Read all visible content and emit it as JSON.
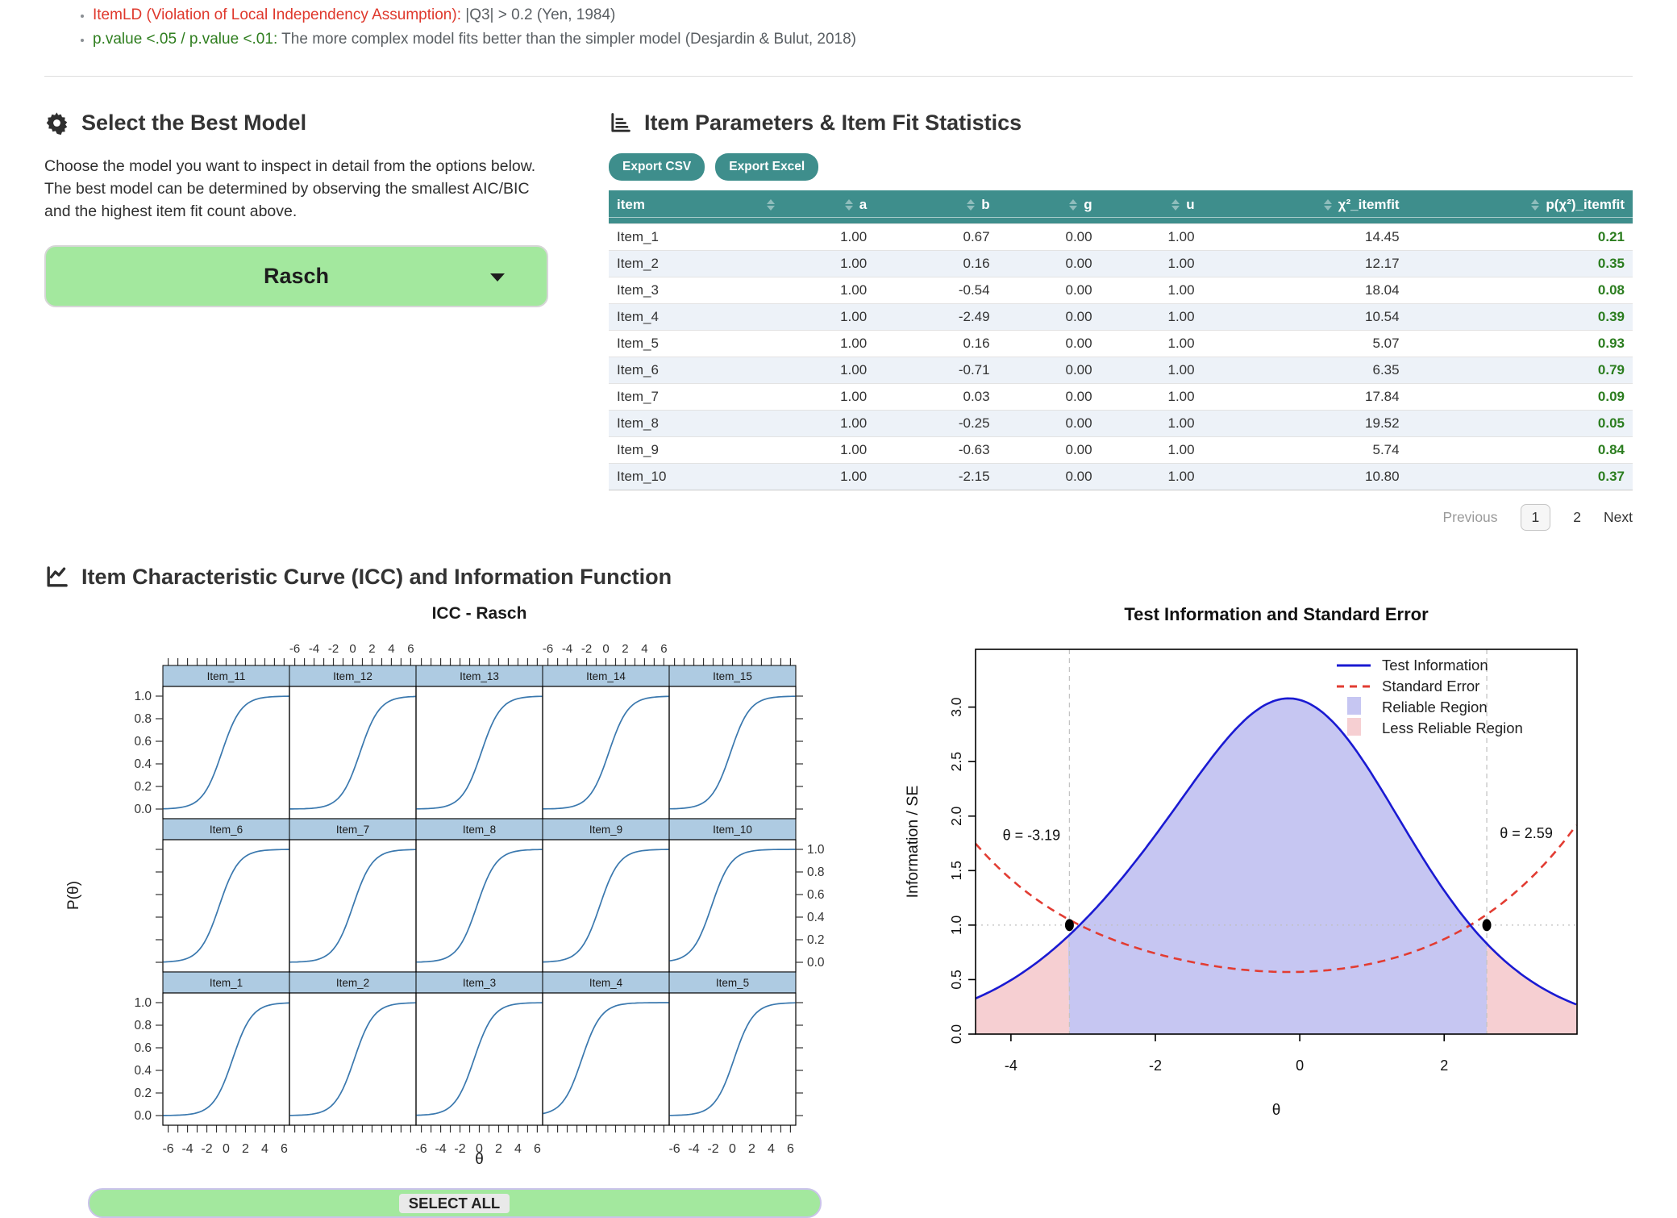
{
  "colors": {
    "teal": "#3e8e8c",
    "green_button": "#a3e89e",
    "lavender_border": "#cac3ea",
    "pvalue_green": "#2b7d1f",
    "note_red": "#df382c",
    "note_green": "#2f7e1f",
    "row_stripe": "#edf2f8"
  },
  "notes": {
    "bullet1_highlight": "ItemLD (Violation of Local Independency Assumption):",
    "bullet1_rest": " |Q3| > 0.2 (Yen, 1984)",
    "bullet2_highlight": "p.value <.05 / p.value <.01:",
    "bullet2_rest": " The more complex model fits better than the simpler model (Desjardin & Bulut, 2018)"
  },
  "model_select": {
    "title": "Select the Best Model",
    "description": "Choose the model you want to inspect in detail from the options below. The best model can be determined by observing the smallest AIC/BIC and the highest item fit count above.",
    "selected_model": "Rasch"
  },
  "item_table": {
    "title": "Item Parameters & Item Fit Statistics",
    "export_csv_label": "Export CSV",
    "export_excel_label": "Export Excel",
    "columns": [
      "item",
      "a",
      "b",
      "g",
      "u",
      "χ²_itemfit",
      "p(χ²)_itemfit"
    ],
    "col_widths_pct": [
      17,
      9,
      12,
      10,
      10,
      20,
      22
    ],
    "rows": [
      [
        "Item_1",
        "1.00",
        "0.67",
        "0.00",
        "1.00",
        "14.45",
        "0.21"
      ],
      [
        "Item_2",
        "1.00",
        "0.16",
        "0.00",
        "1.00",
        "12.17",
        "0.35"
      ],
      [
        "Item_3",
        "1.00",
        "-0.54",
        "0.00",
        "1.00",
        "18.04",
        "0.08"
      ],
      [
        "Item_4",
        "1.00",
        "-2.49",
        "0.00",
        "1.00",
        "10.54",
        "0.39"
      ],
      [
        "Item_5",
        "1.00",
        "0.16",
        "0.00",
        "1.00",
        "5.07",
        "0.93"
      ],
      [
        "Item_6",
        "1.00",
        "-0.71",
        "0.00",
        "1.00",
        "6.35",
        "0.79"
      ],
      [
        "Item_7",
        "1.00",
        "0.03",
        "0.00",
        "1.00",
        "17.84",
        "0.09"
      ],
      [
        "Item_8",
        "1.00",
        "-0.25",
        "0.00",
        "1.00",
        "19.52",
        "0.05"
      ],
      [
        "Item_9",
        "1.00",
        "-0.63",
        "0.00",
        "1.00",
        "5.74",
        "0.84"
      ],
      [
        "Item_10",
        "1.00",
        "-2.15",
        "0.00",
        "1.00",
        "10.80",
        "0.37"
      ]
    ],
    "pagination": {
      "previous": "Previous",
      "pages": [
        "1",
        "2"
      ],
      "current": "1",
      "next": "Next"
    }
  },
  "icc_section": {
    "title": "Item Characteristic Curve (ICC) and Information Function"
  },
  "select_all_label": "SELECT ALL",
  "chart_data": [
    {
      "type": "line",
      "title": "ICC - Rasch",
      "xlabel": "θ",
      "ylabel": "P(θ)",
      "xlim": [
        -6.55,
        6.55
      ],
      "ylim": [
        0,
        1
      ],
      "x_tick_labels": [
        -6,
        -4,
        -2,
        0,
        2,
        4,
        6
      ],
      "x_minor_step": 1,
      "y_ticks": [
        0.0,
        0.2,
        0.4,
        0.6,
        0.8,
        1.0
      ],
      "panel_rows": [
        [
          "Item_11",
          "Item_12",
          "Item_13",
          "Item_14",
          "Item_15"
        ],
        [
          "Item_6",
          "Item_7",
          "Item_8",
          "Item_9",
          "Item_10"
        ],
        [
          "Item_1",
          "Item_2",
          "Item_3",
          "Item_4",
          "Item_5"
        ]
      ],
      "curve_model": "P(θ) = 1 / (1 + exp(-(θ - b)))",
      "b": {
        "Item_1": 0.67,
        "Item_2": 0.16,
        "Item_3": -0.54,
        "Item_4": -2.49,
        "Item_5": 0.16,
        "Item_6": -0.71,
        "Item_7": 0.03,
        "Item_8": -0.25,
        "Item_9": -0.63,
        "Item_10": -2.15,
        "Item_11": -0.45,
        "Item_12": 0.75,
        "Item_13": 0.2,
        "Item_14": 0.3,
        "Item_15": -0.2
      },
      "colors": {
        "curve": "#3a78ae",
        "strip": "#aecbe2"
      }
    },
    {
      "type": "area+line",
      "title": "Test Information and Standard Error",
      "xlabel": "θ",
      "ylabel": "Information / SE",
      "xlim": [
        -4.49,
        3.84
      ],
      "ylim": [
        0,
        3.53
      ],
      "x_ticks": [
        -4,
        -2,
        0,
        2
      ],
      "y_ticks": [
        0.0,
        0.5,
        1.0,
        1.5,
        2.0,
        2.5,
        3.0
      ],
      "series": [
        {
          "name": "Test Information",
          "color": "#1a1ad2",
          "style": "solid",
          "peak": {
            "x": -0.15,
            "y": 3.08
          },
          "relation": "TI(θ) = Σ P(θ)(1-P(θ)) over the 15 Rasch items"
        },
        {
          "name": "Standard Error",
          "color": "#e23c32",
          "style": "dashed",
          "min": {
            "x": -0.15,
            "y": 0.57
          },
          "relation": "SE = 1/sqrt(TI)"
        }
      ],
      "cutoffs": {
        "theta_low": -3.19,
        "theta_high": 2.59,
        "intersection_y": 1.0
      },
      "annotations": [
        "θ = -3.19",
        "θ = 2.59"
      ],
      "legend": [
        "Test Information",
        "Standard Error",
        "Reliable Region",
        "Less Reliable Region"
      ],
      "region_colors": {
        "reliable": "#c6c6f2",
        "less_reliable": "#f6cfd2"
      },
      "guide_colors": {
        "vline_dash": "#c4c4c4",
        "hline_dot": "#bdbdbd"
      }
    }
  ]
}
